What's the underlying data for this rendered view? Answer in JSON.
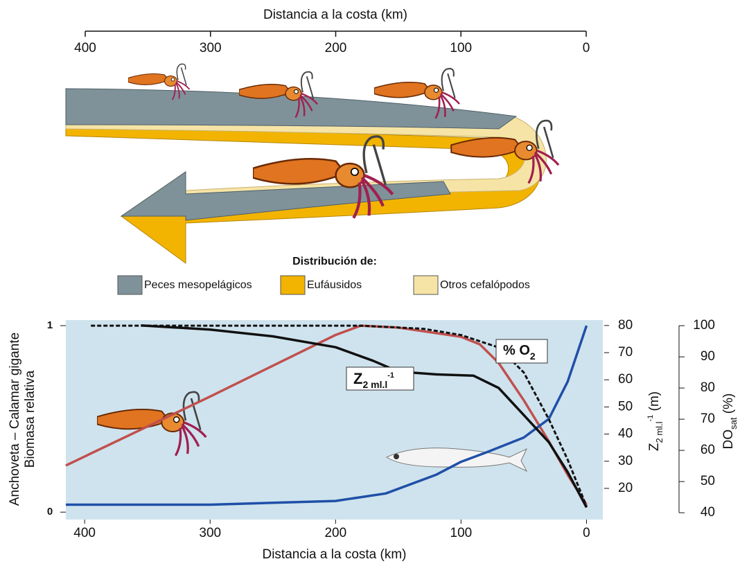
{
  "top_diagram": {
    "axis_title": "Distancia a la costa (km)",
    "xlim": [
      400,
      0
    ],
    "xticks": [
      400,
      300,
      200,
      100,
      0
    ],
    "legend_title": "Distribución de:",
    "legend": [
      {
        "name": "Peces mesopelágicos",
        "color": "#7f929a"
      },
      {
        "name": "Eufáusidos",
        "color": "#f2b400"
      },
      {
        "name": "Otros cefalópodos",
        "color": "#f6e4a6"
      }
    ]
  },
  "chart_data": {
    "type": "line",
    "xlabel": "Distancia a la costa (km)",
    "ylabel": [
      "Anchoveta – Calamar gigante",
      "Biomasa relativa"
    ],
    "y2label": {
      "main": "Z",
      "sub": "2 ml.l",
      "sup": "-1",
      "suffix": " (m)"
    },
    "y3label": {
      "main": "DO",
      "sub": "sat",
      "suffix": " (%)"
    },
    "xlim": [
      415,
      -13
    ],
    "xticks": [
      400,
      300,
      200,
      100,
      0
    ],
    "ylim": [
      -0.04,
      1.03
    ],
    "yticks": [
      0,
      1
    ],
    "y2lim": [
      8.5,
      82
    ],
    "y2ticks": [
      20,
      30,
      40,
      50,
      60,
      70,
      80
    ],
    "y3lim": [
      37.8,
      101.8
    ],
    "y3ticks": [
      40,
      50,
      60,
      70,
      80,
      90,
      100
    ],
    "background": "#cfe3ee",
    "annotations": [
      {
        "main": "Z",
        "sub": "2 ml.l",
        "sup": "-1"
      },
      {
        "main": "% O",
        "sub": "2"
      }
    ],
    "series": [
      {
        "color": "#c0504d",
        "axis": "y",
        "x": [
          415,
          300,
          200,
          180,
          150,
          120,
          100,
          85,
          70,
          50,
          30,
          15,
          0
        ],
        "values": [
          0.25,
          0.62,
          0.95,
          1.0,
          0.99,
          0.96,
          0.94,
          0.9,
          0.8,
          0.6,
          0.38,
          0.2,
          0.04
        ]
      },
      {
        "color": "#1f4fa8",
        "axis": "y",
        "x": [
          415,
          300,
          200,
          160,
          120,
          100,
          80,
          50,
          30,
          15,
          0
        ],
        "values": [
          0.04,
          0.04,
          0.06,
          0.1,
          0.2,
          0.27,
          0.32,
          0.4,
          0.5,
          0.7,
          1.0
        ]
      },
      {
        "color": "#111111",
        "axis": "y2",
        "x": [
          355,
          300,
          250,
          200,
          170,
          150,
          120,
          90,
          70,
          50,
          30,
          15,
          0
        ],
        "values": [
          80,
          78.5,
          76,
          72,
          67,
          63,
          62,
          61.5,
          57,
          47,
          37,
          26,
          13
        ]
      },
      {
        "color": "#111111",
        "axis": "y3",
        "dash": true,
        "x": [
          395,
          300,
          180,
          130,
          100,
          70,
          50,
          30,
          15,
          0
        ],
        "values": [
          100,
          100,
          100,
          99,
          97,
          93,
          85,
          70,
          57,
          42
        ]
      }
    ]
  }
}
